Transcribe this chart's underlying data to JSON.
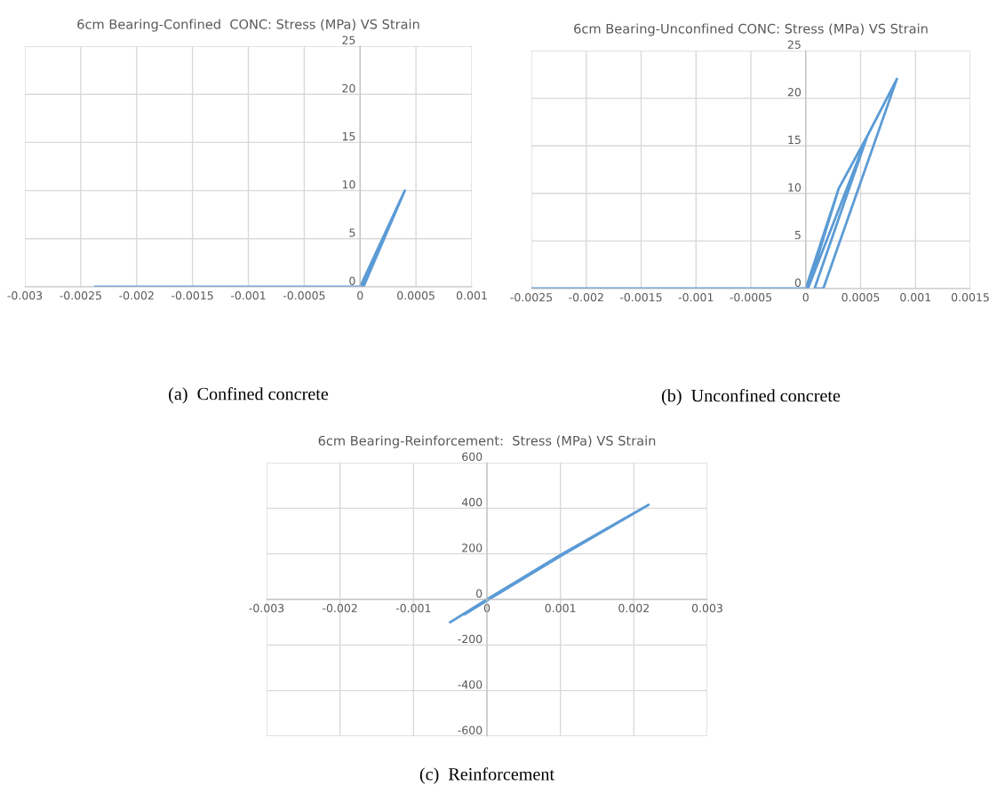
{
  "chart_data": [
    {
      "type": "line",
      "title": "6cm Bearing-Confined  CONC: Stress (MPa) VS Strain",
      "annotations": [
        "(a)  Confined concrete"
      ],
      "series": [
        {
          "color": "#5b9bd5",
          "x": [
            -0.00237,
            -0.0014,
            0,
            0.0004,
            3e-05,
            0.0004,
            1e-05,
            0
          ],
          "values": [
            0,
            0,
            0,
            10,
            0,
            10,
            0,
            0
          ]
        }
      ],
      "xlim": [
        -0.003,
        0.001
      ],
      "xticks": [
        -0.003,
        -0.0025,
        -0.002,
        -0.0015,
        -0.001,
        -0.0005,
        0,
        0.0005,
        0.001
      ],
      "ylim": [
        0,
        25
      ],
      "yticks": [
        0,
        5,
        10,
        15,
        20,
        25
      ],
      "grid": true,
      "marker": "none",
      "line_style": "solid"
    },
    {
      "type": "line",
      "title": "6cm Bearing-Unconfined CONC: Stress (MPa) VS Strain",
      "annotations": [
        "(b)  Unconfined concrete"
      ],
      "series": [
        {
          "color": "#5b9bd5",
          "x": [
            -0.0025,
            -0.0012,
            0,
            0.0003,
            0.00056,
            0.00083,
            0.00016,
            8e-05,
            0.00056,
            2e-05,
            0.0003,
            0.00056,
            0.00083
          ],
          "values": [
            0,
            0,
            0,
            10.5,
            16,
            22,
            0,
            0,
            16,
            0,
            10.5,
            16,
            22
          ]
        }
      ],
      "xlim": [
        -0.0025,
        0.0015
      ],
      "xticks": [
        -0.0025,
        -0.002,
        -0.0015,
        -0.001,
        -0.0005,
        0,
        0.0005,
        0.001,
        0.0015
      ],
      "ylim": [
        0,
        25
      ],
      "yticks": [
        0,
        5,
        10,
        15,
        20,
        25
      ],
      "grid": true,
      "marker": "none",
      "line_style": "solid"
    },
    {
      "type": "line",
      "title": "6cm Bearing-Reinforcement:  Stress (MPa) VS Strain",
      "annotations": [
        "(c)  Reinforcement"
      ],
      "series": [
        {
          "color": "#5b9bd5",
          "x": [
            -0.0005,
            0,
            0.001,
            0.0022,
            0.001,
            0,
            -0.0003
          ],
          "values": [
            -100,
            0,
            195,
            415,
            190,
            -5,
            -65
          ]
        }
      ],
      "xlim": [
        -0.003,
        0.003
      ],
      "xticks": [
        -0.003,
        -0.002,
        -0.001,
        0,
        0.001,
        0.002,
        0.003
      ],
      "ylim": [
        -600,
        600
      ],
      "yticks": [
        -600,
        -400,
        -200,
        0,
        200,
        400,
        600
      ],
      "grid": true,
      "marker": "none",
      "line_style": "solid"
    }
  ]
}
